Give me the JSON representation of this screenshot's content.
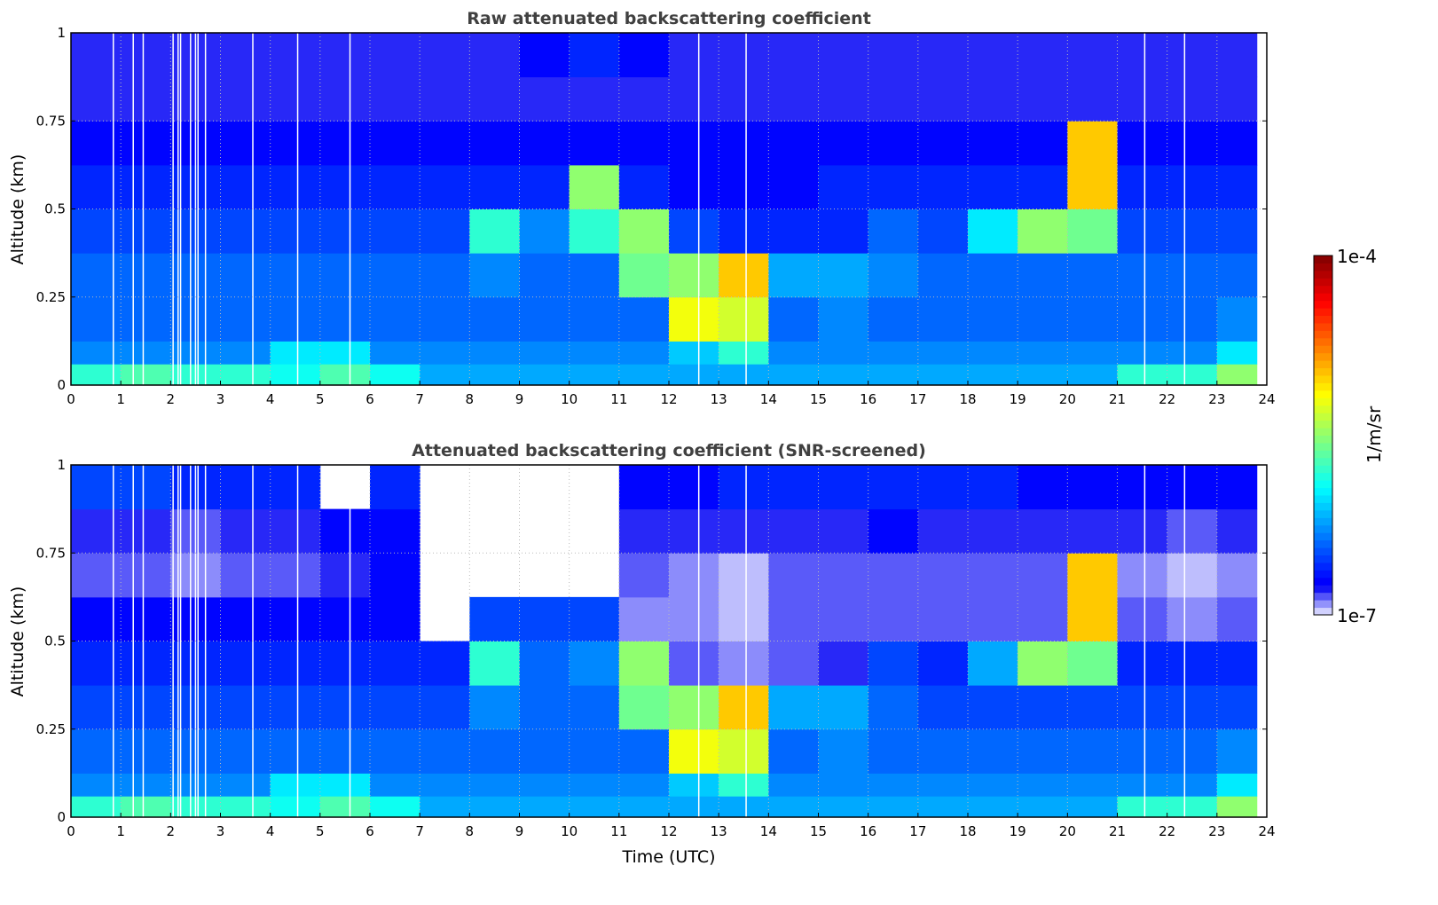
{
  "chart_data": [
    {
      "type": "heatmap",
      "title": "Raw attenuated backscattering coefficient",
      "xlabel": "",
      "ylabel": "Altitude (km)",
      "xlim": [
        0,
        24
      ],
      "ylim": [
        0,
        1
      ],
      "x_ticks": [
        "0",
        "1",
        "2",
        "3",
        "4",
        "5",
        "6",
        "7",
        "8",
        "9",
        "10",
        "11",
        "12",
        "13",
        "14",
        "15",
        "16",
        "17",
        "18",
        "19",
        "20",
        "21",
        "22",
        "23",
        "24"
      ],
      "y_ticks": [
        "0",
        "0.25",
        "0.5",
        "0.75",
        "1"
      ],
      "grid": true,
      "data_end_hour": 23.8,
      "altitude_bins_km": [
        [
          0,
          0.06
        ],
        [
          0.06,
          0.125
        ],
        [
          0.125,
          0.25
        ],
        [
          0.25,
          0.375
        ],
        [
          0.375,
          0.5
        ],
        [
          0.5,
          0.625
        ],
        [
          0.625,
          0.75
        ],
        [
          0.75,
          0.875
        ],
        [
          0.875,
          1
        ]
      ],
      "value_units": "log10(1/m/sr)",
      "values": [
        [
          -5.8,
          -5.7,
          -5.8,
          -5.8,
          -5.9,
          -5.7,
          -5.9,
          -6.2,
          -6.2,
          -6.2,
          -6.2,
          -6.2,
          -6.2,
          -6.2,
          -6.2,
          -6.2,
          -6.2,
          -6.2,
          -6.2,
          -6.2,
          -6.2,
          -5.8,
          -5.8,
          -5.5
        ],
        [
          -6.3,
          -6.3,
          -6.3,
          -6.3,
          -6.0,
          -6.0,
          -6.3,
          -6.3,
          -6.3,
          -6.3,
          -6.3,
          -6.3,
          -6.1,
          -5.8,
          -6.3,
          -6.3,
          -6.3,
          -6.3,
          -6.3,
          -6.3,
          -6.3,
          -6.3,
          -6.3,
          -6.0
        ],
        [
          -6.4,
          -6.4,
          -6.4,
          -6.4,
          -6.4,
          -6.4,
          -6.4,
          -6.4,
          -6.4,
          -6.4,
          -6.4,
          -6.4,
          -5.2,
          -5.3,
          -6.4,
          -6.3,
          -6.4,
          -6.4,
          -6.4,
          -6.4,
          -6.4,
          -6.4,
          -6.4,
          -6.3
        ],
        [
          -6.4,
          -6.4,
          -6.4,
          -6.4,
          -6.4,
          -6.4,
          -6.4,
          -6.4,
          -6.3,
          -6.4,
          -6.4,
          -5.6,
          -5.5,
          -5.0,
          -6.2,
          -6.2,
          -6.3,
          -6.4,
          -6.4,
          -6.4,
          -6.4,
          -6.4,
          -6.4,
          -6.4
        ],
        [
          -6.5,
          -6.5,
          -6.5,
          -6.5,
          -6.5,
          -6.5,
          -6.5,
          -6.5,
          -5.8,
          -6.3,
          -5.8,
          -5.5,
          -6.5,
          -6.6,
          -6.6,
          -6.6,
          -6.4,
          -6.5,
          -6.0,
          -5.5,
          -5.6,
          -6.5,
          -6.5,
          -6.5
        ],
        [
          -6.6,
          -6.6,
          -6.6,
          -6.6,
          -6.6,
          -6.6,
          -6.6,
          -6.6,
          -6.6,
          -6.6,
          -5.5,
          -6.6,
          -6.7,
          -6.7,
          -6.7,
          -6.6,
          -6.6,
          -6.6,
          -6.6,
          -6.6,
          -5.0,
          -6.6,
          -6.6,
          -6.6
        ],
        [
          -6.7,
          -6.7,
          -6.7,
          -6.7,
          -6.7,
          -6.7,
          -6.7,
          -6.7,
          -6.7,
          -6.7,
          -6.7,
          -6.7,
          -6.7,
          -6.7,
          -6.7,
          -6.7,
          -6.7,
          -6.7,
          -6.7,
          -6.7,
          -5.0,
          -6.7,
          -6.7,
          -6.7
        ],
        [
          -6.8,
          -6.8,
          -6.8,
          -6.8,
          -6.8,
          -6.8,
          -6.8,
          -6.8,
          -6.8,
          -6.8,
          -6.8,
          -6.8,
          -6.8,
          -6.8,
          -6.8,
          -6.8,
          -6.8,
          -6.8,
          -6.8,
          -6.8,
          -6.8,
          -6.8,
          -6.8,
          -6.8
        ],
        [
          -6.8,
          -6.8,
          -6.8,
          -6.8,
          -6.8,
          -6.8,
          -6.8,
          -6.8,
          -6.8,
          -6.7,
          -6.6,
          -6.7,
          -6.8,
          -6.8,
          -6.8,
          -6.8,
          -6.8,
          -6.8,
          -6.8,
          -6.8,
          -6.8,
          -6.8,
          -6.8,
          -6.8
        ]
      ],
      "missing_profile_hours": [
        0.85,
        1.25,
        1.45,
        2.05,
        2.15,
        2.2,
        2.4,
        2.5,
        2.55,
        2.7,
        3.65,
        4.55,
        5.6,
        12.6,
        13.55,
        21.55,
        22.35
      ]
    },
    {
      "type": "heatmap",
      "title": "Attenuated backscattering coefficient (SNR-screened)",
      "xlabel": "Time (UTC)",
      "ylabel": "Altitude (km)",
      "xlim": [
        0,
        24
      ],
      "ylim": [
        0,
        1
      ],
      "x_ticks": [
        "0",
        "1",
        "2",
        "3",
        "4",
        "5",
        "6",
        "7",
        "8",
        "9",
        "10",
        "11",
        "12",
        "13",
        "14",
        "15",
        "16",
        "17",
        "18",
        "19",
        "20",
        "21",
        "22",
        "23",
        "24"
      ],
      "y_ticks": [
        "0",
        "0.25",
        "0.5",
        "0.75",
        "1"
      ],
      "grid": true,
      "data_end_hour": 23.8,
      "altitude_bins_km": [
        [
          0,
          0.06
        ],
        [
          0.06,
          0.125
        ],
        [
          0.125,
          0.25
        ],
        [
          0.25,
          0.375
        ],
        [
          0.375,
          0.5
        ],
        [
          0.5,
          0.625
        ],
        [
          0.625,
          0.75
        ],
        [
          0.75,
          0.875
        ],
        [
          0.875,
          1
        ]
      ],
      "value_units": "log10(1/m/sr)",
      "values": [
        [
          -5.8,
          -5.7,
          -5.8,
          -5.8,
          -5.9,
          -5.7,
          -5.9,
          -6.2,
          -6.2,
          -6.2,
          -6.2,
          -6.2,
          -6.2,
          -6.2,
          -6.2,
          -6.2,
          -6.2,
          -6.2,
          -6.2,
          -6.2,
          -6.2,
          -5.8,
          -5.8,
          -5.5
        ],
        [
          -6.3,
          -6.3,
          -6.3,
          -6.3,
          -6.0,
          -6.0,
          -6.3,
          -6.3,
          -6.3,
          -6.3,
          -6.3,
          -6.3,
          -6.1,
          -5.8,
          -6.3,
          -6.3,
          -6.3,
          -6.3,
          -6.3,
          -6.3,
          -6.3,
          -6.3,
          -6.3,
          -6.0
        ],
        [
          -6.4,
          -6.4,
          -6.4,
          -6.4,
          -6.4,
          -6.4,
          -6.4,
          -6.4,
          -6.4,
          -6.4,
          -6.4,
          -6.4,
          -5.2,
          -5.3,
          -6.4,
          -6.3,
          -6.4,
          -6.4,
          -6.4,
          -6.4,
          -6.4,
          -6.4,
          -6.4,
          -6.3
        ],
        [
          -6.5,
          -6.5,
          -6.5,
          -6.5,
          -6.5,
          -6.5,
          -6.5,
          -6.5,
          -6.3,
          -6.4,
          -6.4,
          -5.6,
          -5.5,
          -5.0,
          -6.2,
          -6.2,
          -6.4,
          -6.5,
          -6.5,
          -6.5,
          -6.5,
          -6.5,
          -6.5,
          -6.5
        ],
        [
          -6.6,
          -6.6,
          -6.6,
          -6.6,
          -6.6,
          -6.6,
          -6.6,
          -6.6,
          -5.8,
          -6.4,
          -6.3,
          -5.5,
          -6.85,
          -6.9,
          -6.85,
          -6.8,
          -6.5,
          -6.6,
          -6.2,
          -5.5,
          -5.6,
          -6.6,
          -6.6,
          -6.6
        ],
        [
          -6.7,
          -6.7,
          -6.7,
          -6.7,
          -6.7,
          -6.7,
          -6.7,
          null,
          -6.5,
          -6.5,
          -6.5,
          -6.9,
          -6.9,
          -6.95,
          -6.85,
          -6.85,
          -6.85,
          -6.85,
          -6.85,
          -6.85,
          -5.0,
          -6.85,
          -6.9,
          -6.85
        ],
        [
          -6.85,
          -6.85,
          -6.9,
          -6.85,
          -6.85,
          -6.8,
          -6.7,
          null,
          null,
          null,
          null,
          -6.85,
          -6.9,
          -6.95,
          -6.85,
          -6.85,
          -6.85,
          -6.85,
          -6.85,
          -6.85,
          -5.0,
          -6.9,
          -6.95,
          -6.9
        ],
        [
          -6.8,
          -6.8,
          -6.85,
          -6.8,
          -6.8,
          -6.7,
          -6.7,
          null,
          null,
          null,
          null,
          -6.8,
          -6.8,
          -6.8,
          -6.8,
          -6.8,
          -6.7,
          -6.8,
          -6.8,
          -6.8,
          -6.8,
          -6.8,
          -6.85,
          -6.8
        ],
        [
          -6.5,
          -6.5,
          -6.6,
          -6.6,
          -6.6,
          null,
          -6.6,
          null,
          null,
          null,
          null,
          -6.7,
          -6.7,
          -6.6,
          -6.6,
          -6.6,
          -6.6,
          -6.6,
          -6.6,
          -6.7,
          -6.7,
          -6.7,
          -6.7,
          -6.7
        ]
      ],
      "missing_profile_hours": [
        0.85,
        1.25,
        1.45,
        2.05,
        2.15,
        2.2,
        2.4,
        2.5,
        2.55,
        2.7,
        3.65,
        4.55,
        5.6,
        12.6,
        13.55,
        21.55,
        22.35
      ]
    }
  ],
  "colorbar": {
    "label": "1/m/sr",
    "max_label": "1e-4",
    "min_label": "1e-7",
    "log10_range": [
      -7,
      -4
    ]
  }
}
